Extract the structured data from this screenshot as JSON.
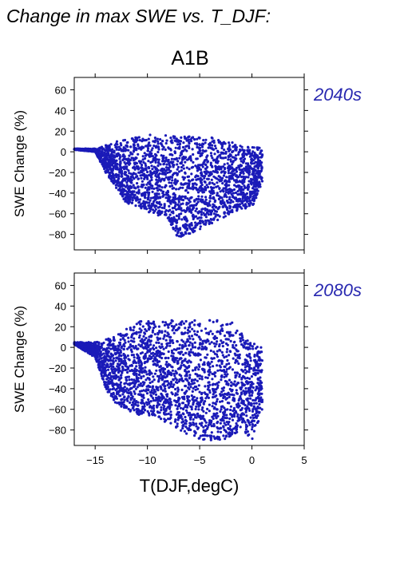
{
  "title": "Change in max SWE vs. T_DJF:",
  "scenario": "A1B",
  "colors": {
    "points": "#1a1ab8",
    "period_label": "#2828b0",
    "axis": "#000000"
  },
  "chart_data": [
    {
      "type": "scatter",
      "period": "2040s",
      "ylabel": "SWE Change (%)",
      "xlabel": "",
      "xlim": [
        -17,
        5
      ],
      "ylim": [
        -95,
        72
      ],
      "x_ticks": [
        -15,
        -10,
        -5,
        0,
        5
      ],
      "y_ticks": [
        60,
        40,
        20,
        0,
        -20,
        -40,
        -60,
        -80
      ],
      "x_tick_labels_shown": false,
      "grid": false,
      "cloud": {
        "x_range": [
          -17.0,
          1.0
        ],
        "upper_envelope": [
          [
            -17,
            3
          ],
          [
            -15,
            3
          ],
          [
            -13,
            10
          ],
          [
            -10,
            17
          ],
          [
            -8,
            16
          ],
          [
            -6,
            15
          ],
          [
            -4,
            14
          ],
          [
            -2,
            12
          ],
          [
            -1,
            6
          ],
          [
            1,
            4
          ]
        ],
        "lower_envelope": [
          [
            -17,
            2
          ],
          [
            -15,
            0
          ],
          [
            -14,
            -20
          ],
          [
            -12,
            -50
          ],
          [
            -10,
            -58
          ],
          [
            -8,
            -65
          ],
          [
            -7,
            -85
          ],
          [
            -5,
            -75
          ],
          [
            -3,
            -65
          ],
          [
            -1,
            -55
          ],
          [
            0,
            -55
          ],
          [
            1,
            -30
          ]
        ]
      }
    },
    {
      "type": "scatter",
      "period": "2080s",
      "ylabel": "SWE Change (%)",
      "xlabel": "T(DJF,degC)",
      "xlim": [
        -17,
        5
      ],
      "ylim": [
        -95,
        72
      ],
      "x_ticks": [
        -15,
        -10,
        -5,
        0,
        5
      ],
      "y_ticks": [
        60,
        40,
        20,
        0,
        -20,
        -40,
        -60,
        -80
      ],
      "x_tick_labels_shown": true,
      "grid": false,
      "cloud": {
        "x_range": [
          -17.0,
          1.0
        ],
        "upper_envelope": [
          [
            -17,
            5
          ],
          [
            -15,
            5
          ],
          [
            -13,
            12
          ],
          [
            -11,
            25
          ],
          [
            -8,
            28
          ],
          [
            -6,
            26
          ],
          [
            -4,
            27
          ],
          [
            -2,
            25
          ],
          [
            -1,
            15
          ],
          [
            0,
            5
          ],
          [
            1,
            0
          ]
        ],
        "lower_envelope": [
          [
            -17,
            3
          ],
          [
            -15,
            -10
          ],
          [
            -14,
            -40
          ],
          [
            -13,
            -55
          ],
          [
            -11,
            -65
          ],
          [
            -9,
            -68
          ],
          [
            -7,
            -80
          ],
          [
            -5,
            -90
          ],
          [
            -3,
            -92
          ],
          [
            -1,
            -80
          ],
          [
            0,
            -90
          ],
          [
            1,
            -60
          ]
        ]
      }
    }
  ]
}
